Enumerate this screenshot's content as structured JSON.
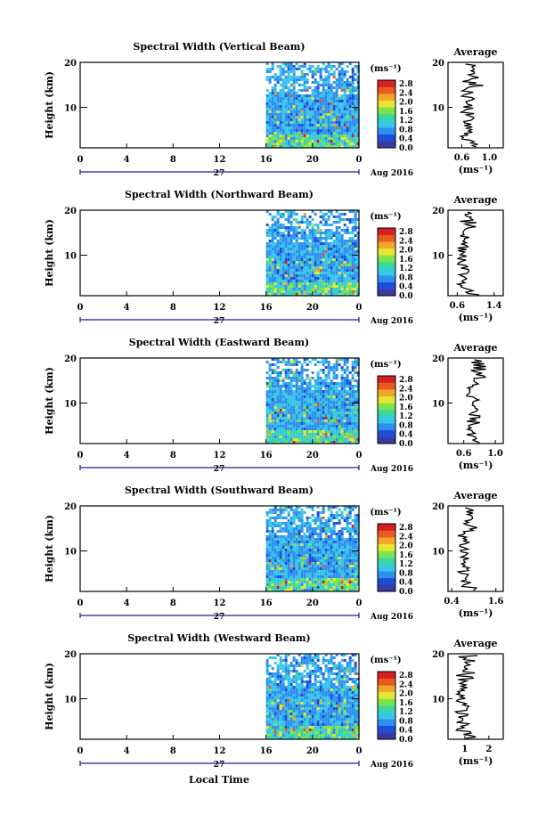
{
  "figure": {
    "xlabel": "Local Time",
    "date_label": "Aug 2016",
    "day_label": "27",
    "avg_title": "Average",
    "ylabel": "Height (km)",
    "unit_label": "(ms⁻¹)",
    "colorbar_ticks": [
      "2.8",
      "2.4",
      "2.0",
      "1.6",
      "1.2",
      "0.8",
      "0.4",
      "0.0"
    ],
    "colors": {
      "scale": [
        "#3a3aa0",
        "#1e4ed8",
        "#2f8ff0",
        "#36c6e8",
        "#38d7a0",
        "#7ee24a",
        "#e6e632",
        "#f2a72a",
        "#e85a1e",
        "#d42020"
      ],
      "axis": "#000000",
      "time_axis_marker": "#1a1aa0"
    }
  },
  "chart_data": [
    {
      "type": "heatmap",
      "title": "Spectral Width (Vertical Beam)",
      "x_ticks": [
        "0",
        "4",
        "8",
        "12",
        "16",
        "20",
        "0"
      ],
      "y_ticks": [
        "20",
        "10"
      ],
      "xlim": [
        0,
        24
      ],
      "ylim": [
        1,
        20
      ],
      "data_start_hour": 16,
      "zlim": [
        0,
        3
      ],
      "average_profile": {
        "title": "Average",
        "x_ticks": [
          "0.6",
          "1.0"
        ],
        "xlim": [
          0.4,
          1.2
        ],
        "mean": 0.68
      }
    },
    {
      "type": "heatmap",
      "title": "Spectral Width (Northward Beam)",
      "x_ticks": [
        "0",
        "4",
        "8",
        "12",
        "16",
        "20",
        "0"
      ],
      "y_ticks": [
        "20",
        "10"
      ],
      "xlim": [
        0,
        24
      ],
      "ylim": [
        1,
        20
      ],
      "data_start_hour": 16,
      "zlim": [
        0,
        3
      ],
      "average_profile": {
        "title": "Average",
        "x_ticks": [
          "0.6",
          "1.4"
        ],
        "xlim": [
          0.4,
          1.6
        ],
        "mean": 0.75
      }
    },
    {
      "type": "heatmap",
      "title": "Spectral Width (Eastward Beam)",
      "x_ticks": [
        "0",
        "4",
        "8",
        "12",
        "16",
        "20",
        "0"
      ],
      "y_ticks": [
        "20",
        "10"
      ],
      "xlim": [
        0,
        24
      ],
      "ylim": [
        1,
        20
      ],
      "data_start_hour": 16,
      "zlim": [
        0,
        3
      ],
      "average_profile": {
        "title": "Average",
        "x_ticks": [
          "0.6",
          "1.0"
        ],
        "xlim": [
          0.4,
          1.1
        ],
        "mean": 0.72
      }
    },
    {
      "type": "heatmap",
      "title": "Spectral Width (Southward Beam)",
      "x_ticks": [
        "0",
        "4",
        "8",
        "12",
        "16",
        "20",
        "0"
      ],
      "y_ticks": [
        "20",
        "10"
      ],
      "xlim": [
        0,
        24
      ],
      "ylim": [
        1,
        20
      ],
      "data_start_hour": 16,
      "zlim": [
        0,
        3
      ],
      "average_profile": {
        "title": "Average",
        "x_ticks": [
          "0.4",
          "1.6"
        ],
        "xlim": [
          0.3,
          1.8
        ],
        "mean": 0.75
      }
    },
    {
      "type": "heatmap",
      "title": "Spectral Width (Westward Beam)",
      "x_ticks": [
        "0",
        "4",
        "8",
        "12",
        "16",
        "20",
        "0"
      ],
      "y_ticks": [
        "20",
        "10"
      ],
      "xlim": [
        0,
        24
      ],
      "ylim": [
        1,
        20
      ],
      "data_start_hour": 16,
      "zlim": [
        0,
        3
      ],
      "average_profile": {
        "title": "Average",
        "x_ticks": [
          "1",
          "2"
        ],
        "xlim": [
          0.3,
          2.6
        ],
        "mean": 0.9
      }
    }
  ]
}
